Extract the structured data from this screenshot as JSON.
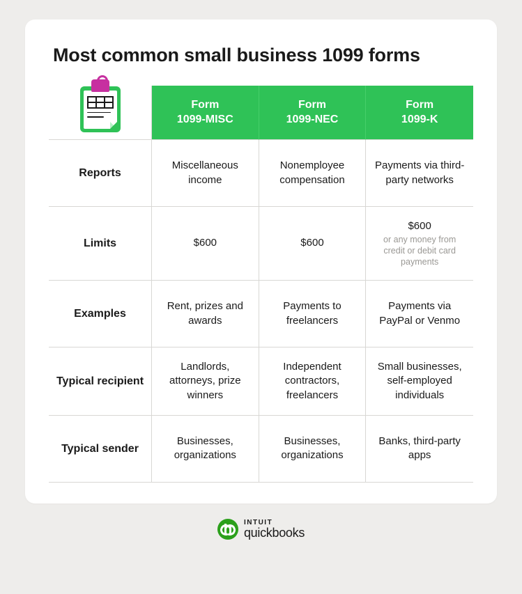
{
  "title": "Most common small business 1099 forms",
  "colors": {
    "page_bg": "#eeedeb",
    "card_bg": "#ffffff",
    "header_bg": "#2fc257",
    "header_text": "#ffffff",
    "text": "#1a1a1a",
    "muted": "#9a9894",
    "grid_line": "#d8d7d4",
    "logo_green": "#2ca01c",
    "clip_magenta": "#c730a0"
  },
  "table": {
    "column_headers": [
      {
        "pre": "Form",
        "main": "1099-MISC"
      },
      {
        "pre": "Form",
        "main": "1099-NEC"
      },
      {
        "pre": "Form",
        "main": "1099-K"
      }
    ],
    "rows": [
      {
        "label": "Reports",
        "cells": [
          {
            "text": "Miscellaneous income"
          },
          {
            "text": "Nonemployee compensation"
          },
          {
            "text": "Payments via third-party networks"
          }
        ]
      },
      {
        "label": "Limits",
        "cells": [
          {
            "text": "$600"
          },
          {
            "text": "$600"
          },
          {
            "text": "$600",
            "sub": "or any money from credit or debit card payments"
          }
        ]
      },
      {
        "label": "Examples",
        "cells": [
          {
            "text": "Rent, prizes and awards"
          },
          {
            "text": "Payments to freelancers"
          },
          {
            "text": "Payments via PayPal or Venmo"
          }
        ]
      },
      {
        "label": "Typical recipient",
        "cells": [
          {
            "text": "Landlords, attorneys, prize winners"
          },
          {
            "text": "Independent contractors, freelancers"
          },
          {
            "text": "Small businesses, self-employed individuals"
          }
        ]
      },
      {
        "label": "Typical sender",
        "cells": [
          {
            "text": "Businesses, organizations"
          },
          {
            "text": "Businesses, organizations"
          },
          {
            "text": "Banks, third-party apps"
          }
        ]
      }
    ]
  },
  "footer": {
    "line1": "INTUIT",
    "line2": "quickbooks"
  }
}
